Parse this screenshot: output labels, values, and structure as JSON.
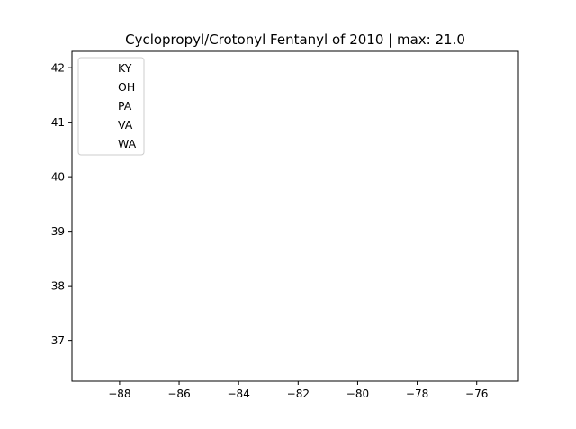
{
  "chart_data": {
    "type": "scatter",
    "title": "Cyclopropyl/Crotonyl Fentanyl of 2010 | max: 21.0",
    "xlabel": "",
    "ylabel": "",
    "xlim": [
      -89.6,
      -74.6
    ],
    "ylim": [
      36.25,
      42.3
    ],
    "x_ticks": [
      -88,
      -86,
      -84,
      -82,
      -80,
      -78,
      -76
    ],
    "x_tick_labels": [
      "−88",
      "−86",
      "−84",
      "−82",
      "−80",
      "−78",
      "−76"
    ],
    "y_ticks": [
      37,
      38,
      39,
      40,
      41,
      42
    ],
    "y_tick_labels": [
      "37",
      "38",
      "39",
      "40",
      "41",
      "42"
    ],
    "grid": false,
    "legend_position": "upper-left",
    "series": [
      {
        "name": "KY",
        "x": [],
        "y": []
      },
      {
        "name": "OH",
        "x": [],
        "y": []
      },
      {
        "name": "PA",
        "x": [],
        "y": []
      },
      {
        "name": "VA",
        "x": [],
        "y": []
      },
      {
        "name": "WA",
        "x": [],
        "y": []
      }
    ]
  }
}
